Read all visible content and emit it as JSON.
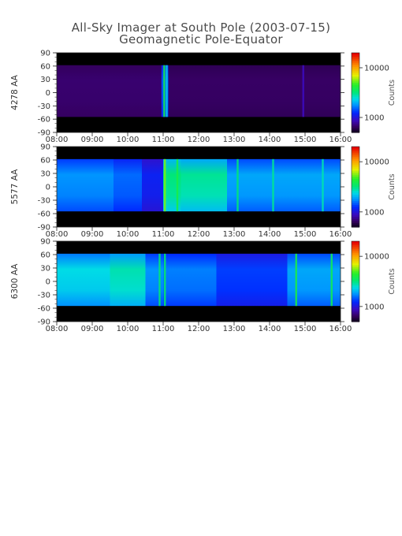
{
  "title": "All-Sky Imager at South Pole (2003-07-15)",
  "subtitle": "Geomagnetic Pole-Equator",
  "chart_data": [
    {
      "type": "heatmap",
      "ylabel": "4278 AA",
      "x_ticks": [
        "08:00",
        "09:00",
        "10:00",
        "11:00",
        "12:00",
        "13:00",
        "14:00",
        "15:00",
        "16:00"
      ],
      "xlim": [
        "08:00",
        "16:00"
      ],
      "y_ticks": [
        90,
        60,
        30,
        0,
        -30,
        -60,
        -90
      ],
      "ylim": [
        -90,
        90
      ],
      "data_band": [
        -55,
        62
      ],
      "colorbar": {
        "label": "Counts",
        "scale": "log",
        "range": [
          500,
          20000
        ],
        "ticks": [
          10000,
          1000
        ]
      },
      "segments": [
        {
          "t": [
            8.0,
            10.95
          ],
          "level": 0.07
        },
        {
          "t": [
            10.95,
            11.15
          ],
          "level": 0.28
        },
        {
          "t": [
            11.15,
            16.0
          ],
          "level": 0.06
        }
      ],
      "streaks": [
        {
          "t": 11.03,
          "level": 0.55
        },
        {
          "t": 11.1,
          "level": 0.4
        },
        {
          "t": 14.95,
          "level": 0.14
        }
      ]
    },
    {
      "type": "heatmap",
      "ylabel": "5577 AA",
      "x_ticks": [
        "08:00",
        "09:00",
        "10:00",
        "11:00",
        "12:00",
        "13:00",
        "14:00",
        "15:00",
        "16:00"
      ],
      "xlim": [
        "08:00",
        "16:00"
      ],
      "y_ticks": [
        90,
        60,
        30,
        0,
        -30,
        -60,
        -90
      ],
      "ylim": [
        -90,
        90
      ],
      "data_band": [
        -55,
        62
      ],
      "colorbar": {
        "label": "Counts",
        "scale": "log",
        "range": [
          500,
          20000
        ],
        "ticks": [
          10000,
          1000
        ]
      },
      "segments": [
        {
          "t": [
            8.0,
            9.6
          ],
          "level": 0.34
        },
        {
          "t": [
            9.6,
            10.4
          ],
          "level": 0.3
        },
        {
          "t": [
            10.4,
            11.0
          ],
          "level": 0.22
        },
        {
          "t": [
            11.0,
            11.5
          ],
          "level": 0.5
        },
        {
          "t": [
            11.5,
            12.8
          ],
          "level": 0.48
        },
        {
          "t": [
            12.8,
            16.0
          ],
          "level": 0.36
        }
      ],
      "streaks": [
        {
          "t": 11.05,
          "level": 0.65
        },
        {
          "t": 11.4,
          "level": 0.56
        },
        {
          "t": 13.1,
          "level": 0.5
        },
        {
          "t": 14.1,
          "level": 0.48
        },
        {
          "t": 15.5,
          "level": 0.46
        }
      ]
    },
    {
      "type": "heatmap",
      "ylabel": "6300 AA",
      "x_ticks": [
        "08:00",
        "09:00",
        "10:00",
        "11:00",
        "12:00",
        "13:00",
        "14:00",
        "15:00",
        "16:00"
      ],
      "xlim": [
        "08:00",
        "16:00"
      ],
      "y_ticks": [
        90,
        60,
        30,
        0,
        -30,
        -60,
        -90
      ],
      "ylim": [
        -90,
        90
      ],
      "data_band": [
        -55,
        62
      ],
      "colorbar": {
        "label": "Counts",
        "scale": "log",
        "range": [
          500,
          20000
        ],
        "ticks": [
          10000,
          1000
        ]
      },
      "segments": [
        {
          "t": [
            8.0,
            9.5
          ],
          "level": 0.42
        },
        {
          "t": [
            9.5,
            10.5
          ],
          "level": 0.46
        },
        {
          "t": [
            10.5,
            11.0
          ],
          "level": 0.34
        },
        {
          "t": [
            11.0,
            12.5
          ],
          "level": 0.32
        },
        {
          "t": [
            12.5,
            14.5
          ],
          "level": 0.26
        },
        {
          "t": [
            14.5,
            16.0
          ],
          "level": 0.36
        }
      ],
      "streaks": [
        {
          "t": 10.9,
          "level": 0.5
        },
        {
          "t": 11.05,
          "level": 0.52
        },
        {
          "t": 14.75,
          "level": 0.56
        },
        {
          "t": 15.75,
          "level": 0.54
        }
      ]
    }
  ]
}
